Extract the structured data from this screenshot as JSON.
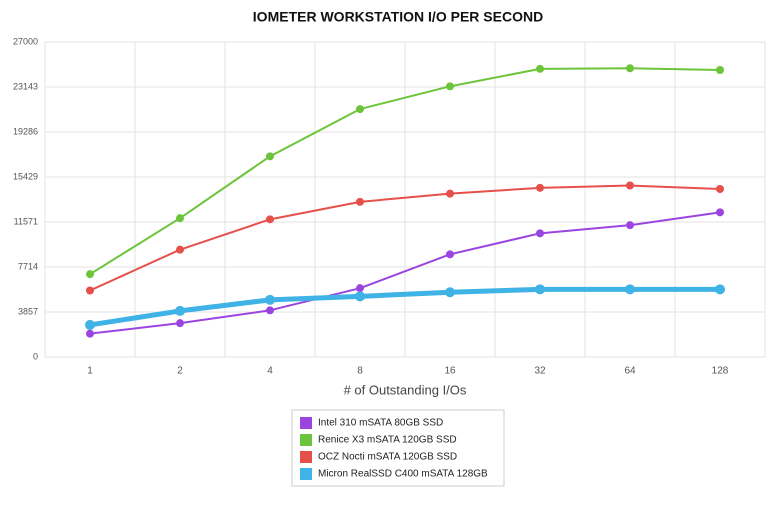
{
  "chart_data": {
    "type": "line",
    "title": "IOMETER WORKSTATION I/O PER SECOND",
    "x_label": "# of Outstanding I/Os",
    "categories": [
      "1",
      "2",
      "4",
      "8",
      "16",
      "32",
      "64",
      "128"
    ],
    "ylim": [
      0,
      27000
    ],
    "yticks": [
      0,
      3857,
      7714,
      11571,
      15429,
      19286,
      23143,
      27000
    ],
    "grid": true,
    "series": [
      {
        "name": "Intel 310 mSATA 80GB SSD",
        "color": "#9b45e0",
        "values": [
          2000,
          2900,
          4000,
          5900,
          8800,
          10600,
          11300,
          12400
        ]
      },
      {
        "name": "Renice X3 mSATA 120GB SSD",
        "color": "#6cc43a",
        "values": [
          7100,
          11900,
          17200,
          21250,
          23200,
          24700,
          24750,
          24600
        ]
      },
      {
        "name": "OCZ Nocti mSATA 120GB SSD",
        "color": "#e5504a",
        "values": [
          5700,
          9200,
          11800,
          13300,
          14000,
          14500,
          14700,
          14400
        ]
      },
      {
        "name": "Micron RealSSD C400 mSATA 128GB",
        "color": "#3fb2e6",
        "values": [
          2750,
          3950,
          4900,
          5200,
          5550,
          5800,
          5800,
          5800
        ]
      }
    ]
  }
}
